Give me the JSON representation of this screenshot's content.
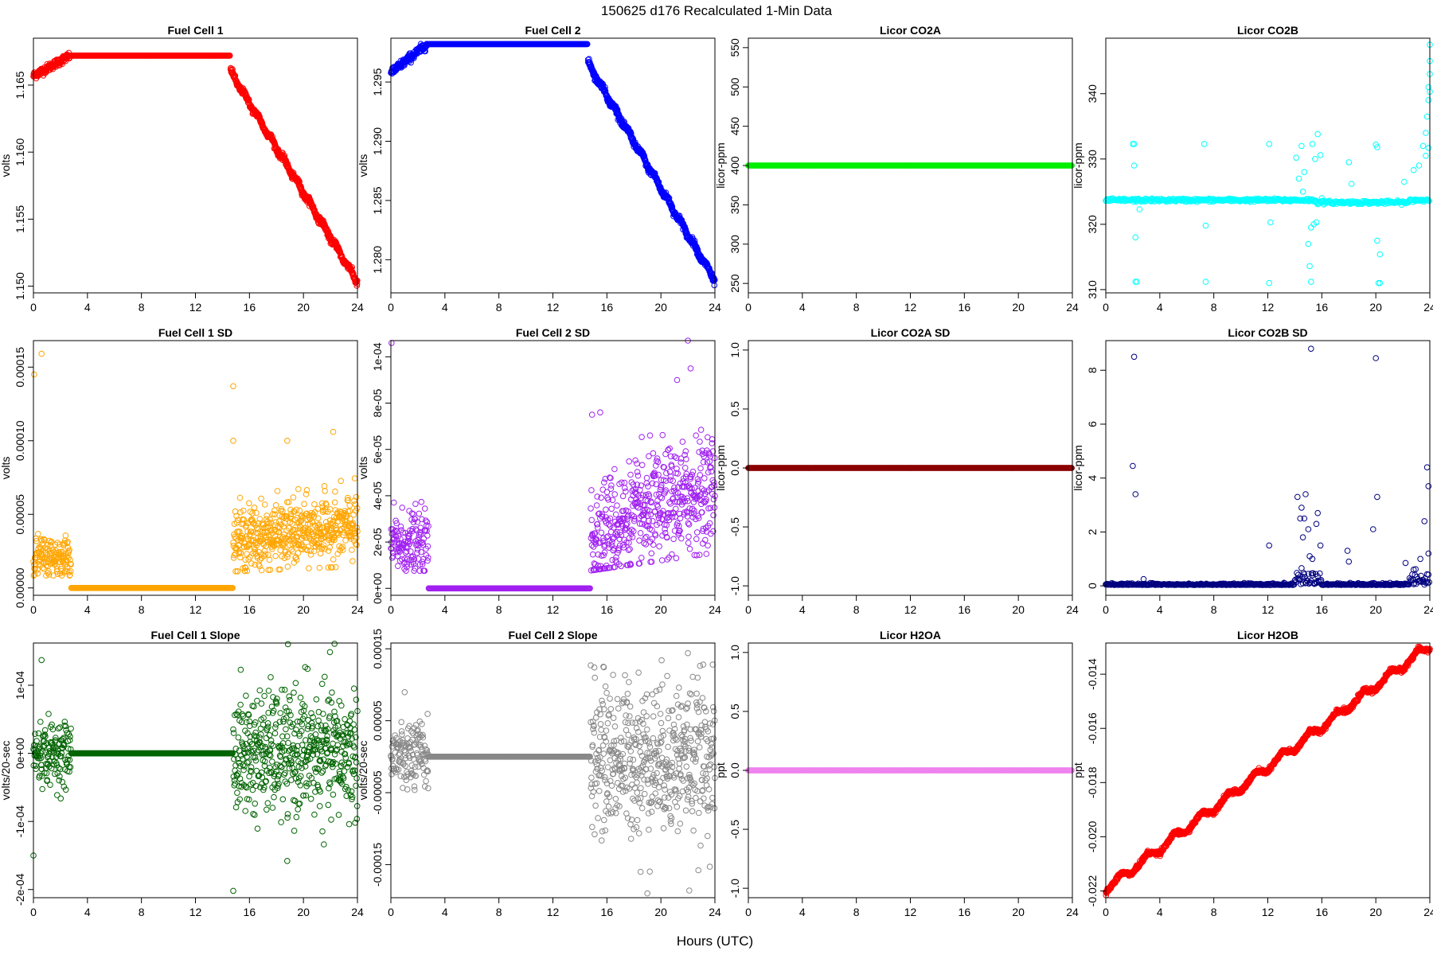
{
  "figure": {
    "title": "150625   d176   Recalculated 1-Min Data",
    "xlabel": "Hours (UTC)"
  },
  "chart_data": [
    {
      "type": "scatter",
      "title": "Fuel Cell 1",
      "ylabel": "volts",
      "color": "#ff0000",
      "xlim": [
        0,
        24
      ],
      "ylim": [
        1.1495,
        1.1685
      ],
      "xticks": [
        0,
        4,
        8,
        12,
        16,
        20,
        24
      ],
      "xtick_labels": [
        "0",
        "4",
        "8",
        "12",
        "16",
        "20",
        "24"
      ],
      "yticks": [
        1.15,
        1.155,
        1.16,
        1.165
      ],
      "ytick_labels": [
        "1.150",
        "1.155",
        "1.160",
        "1.165"
      ],
      "profile": "fc",
      "params": {
        "start": 1.1657,
        "plateau": 1.1672,
        "drop_start": 1.166,
        "end": 1.1503,
        "jitter": 0.00025
      }
    },
    {
      "type": "scatter",
      "title": "Fuel Cell 2",
      "ylabel": "volts",
      "color": "#0000ff",
      "xlim": [
        0,
        24
      ],
      "ylim": [
        1.2772,
        1.2987
      ],
      "xticks": [
        0,
        4,
        8,
        12,
        16,
        20,
        24
      ],
      "xtick_labels": [
        "0",
        "4",
        "8",
        "12",
        "16",
        "20",
        "24"
      ],
      "yticks": [
        1.28,
        1.285,
        1.29,
        1.295
      ],
      "ytick_labels": [
        "1.280",
        "1.285",
        "1.290",
        "1.295"
      ],
      "profile": "fc",
      "params": {
        "start": 1.2958,
        "plateau": 1.2982,
        "drop_start": 1.2966,
        "end": 1.2782,
        "jitter": 0.0003
      }
    },
    {
      "type": "scatter",
      "title": "Licor CO2A",
      "ylabel": "licor-ppm",
      "color": "#00ee00",
      "xlim": [
        0,
        24
      ],
      "ylim": [
        238,
        562
      ],
      "xticks": [
        0,
        4,
        8,
        12,
        16,
        20,
        24
      ],
      "xtick_labels": [
        "0",
        "4",
        "8",
        "12",
        "16",
        "20",
        "24"
      ],
      "yticks": [
        250,
        300,
        350,
        400,
        450,
        500,
        550
      ],
      "ytick_labels": [
        "250",
        "300",
        "350",
        "400",
        "450",
        "500",
        "550"
      ],
      "profile": "flat",
      "params": {
        "value": 400
      }
    },
    {
      "type": "scatter",
      "title": "Licor CO2B",
      "ylabel": "licor-ppm",
      "color": "#00ffff",
      "xlim": [
        0,
        24
      ],
      "ylim": [
        309.5,
        348.5
      ],
      "xticks": [
        0,
        4,
        8,
        12,
        16,
        20,
        24
      ],
      "xtick_labels": [
        "0",
        "4",
        "8",
        "12",
        "16",
        "20",
        "24"
      ],
      "yticks": [
        310,
        320,
        330,
        340
      ],
      "ytick_labels": [
        "310",
        "320",
        "330",
        "340"
      ],
      "profile": "co2b",
      "params": {
        "base": 323.7
      },
      "outliers": [
        [
          2.0,
          332.3
        ],
        [
          2.1,
          332.3
        ],
        [
          2.1,
          329
        ],
        [
          2.2,
          318
        ],
        [
          2.2,
          311.2
        ],
        [
          2.3,
          311.2
        ],
        [
          2.5,
          322.3
        ],
        [
          7.3,
          332.3
        ],
        [
          7.4,
          319.8
        ],
        [
          7.4,
          311.2
        ],
        [
          12.1,
          332.3
        ],
        [
          12.2,
          320.3
        ],
        [
          12.1,
          311
        ],
        [
          14.1,
          330.2
        ],
        [
          14.3,
          327
        ],
        [
          14.5,
          332
        ],
        [
          14.6,
          325
        ],
        [
          14.7,
          328
        ],
        [
          15.0,
          317
        ],
        [
          15.1,
          313.6
        ],
        [
          15.2,
          311.2
        ],
        [
          15.2,
          319.5
        ],
        [
          15.3,
          332.3
        ],
        [
          15.4,
          320
        ],
        [
          15.5,
          330
        ],
        [
          15.6,
          320.3
        ],
        [
          15.7,
          333.8
        ],
        [
          15.9,
          330.6
        ],
        [
          16.0,
          324
        ],
        [
          18.0,
          329.5
        ],
        [
          18.2,
          326.2
        ],
        [
          20.0,
          332.2
        ],
        [
          20.1,
          331.8
        ],
        [
          20.1,
          317.5
        ],
        [
          20.2,
          311
        ],
        [
          20.3,
          315.4
        ],
        [
          20.3,
          311
        ],
        [
          22.1,
          326.5
        ],
        [
          22.8,
          328.3
        ],
        [
          23.2,
          329
        ],
        [
          23.5,
          332
        ],
        [
          23.7,
          334
        ],
        [
          23.8,
          336.5
        ],
        [
          23.9,
          339
        ],
        [
          23.9,
          341
        ],
        [
          24.0,
          343
        ],
        [
          24.0,
          345
        ],
        [
          24.0,
          347.5
        ],
        [
          23.7,
          330.5
        ],
        [
          23.9,
          331.7
        ],
        [
          24.0,
          340.3
        ]
      ]
    },
    {
      "type": "scatter",
      "title": "Fuel Cell 1 SD",
      "ylabel": "volts",
      "color": "#ffa500",
      "xlim": [
        0,
        24
      ],
      "ylim": [
        -5e-06,
        0.000168
      ],
      "xticks": [
        0,
        4,
        8,
        12,
        16,
        20,
        24
      ],
      "xtick_labels": [
        "0",
        "4",
        "8",
        "12",
        "16",
        "20",
        "24"
      ],
      "yticks": [
        0,
        5e-05,
        0.0001,
        0.00015
      ],
      "ytick_labels": [
        "0.00000",
        "0.00005",
        "0.00010",
        "0.00015"
      ],
      "profile": "sd",
      "params": {
        "lo1": 2.1e-05,
        "sd1": 7e-06,
        "lo2": 3.2e-05,
        "sd2": 1.1e-05,
        "trend2": 1e-05
      },
      "outliers": [
        [
          0.05,
          0.000145
        ],
        [
          0.6,
          0.000159
        ],
        [
          14.8,
          0.000137
        ],
        [
          14.8,
          0.0001
        ],
        [
          22.2,
          0.000106
        ],
        [
          18.8,
          0.0001
        ]
      ]
    },
    {
      "type": "scatter",
      "title": "Fuel Cell 2 SD",
      "ylabel": "volts",
      "color": "#a020f0",
      "xlim": [
        0,
        24
      ],
      "ylim": [
        -3e-06,
        0.000107
      ],
      "xticks": [
        0,
        4,
        8,
        12,
        16,
        20,
        24
      ],
      "xtick_labels": [
        "0",
        "4",
        "8",
        "12",
        "16",
        "20",
        "24"
      ],
      "yticks": [
        0,
        2e-05,
        4e-05,
        6e-05,
        8e-05,
        0.0001
      ],
      "ytick_labels": [
        "0e+00",
        "2e-05",
        "4e-05",
        "6e-05",
        "8e-05",
        "1e-04"
      ],
      "profile": "sd",
      "params": {
        "lo1": 1.9e-05,
        "sd1": 7e-06,
        "lo2": 2.2e-05,
        "sd2": 1.2e-05,
        "trend2": 2.2e-05
      },
      "outliers": [
        [
          0.05,
          0.000106
        ],
        [
          22.0,
          0.000107
        ],
        [
          21.2,
          9e-05
        ],
        [
          22.2,
          9.5e-05
        ],
        [
          14.9,
          7.5e-05
        ],
        [
          15.5,
          7.6e-05
        ]
      ]
    },
    {
      "type": "scatter",
      "title": "Licor CO2A SD",
      "ylabel": "licor-ppm",
      "color": "#8b0000",
      "xlim": [
        0,
        24
      ],
      "ylim": [
        -1.08,
        1.08
      ],
      "xticks": [
        0,
        4,
        8,
        12,
        16,
        20,
        24
      ],
      "xtick_labels": [
        "0",
        "4",
        "8",
        "12",
        "16",
        "20",
        "24"
      ],
      "yticks": [
        -1,
        -0.5,
        0,
        0.5,
        1
      ],
      "ytick_labels": [
        "-1.0",
        "-0.5",
        "0.0",
        "0.5",
        "1.0"
      ],
      "profile": "flat",
      "params": {
        "value": 0
      }
    },
    {
      "type": "scatter",
      "title": "Licor CO2B SD",
      "ylabel": "licor-ppm",
      "color": "#000080",
      "xlim": [
        0,
        24
      ],
      "ylim": [
        -0.35,
        9.1
      ],
      "xticks": [
        0,
        4,
        8,
        12,
        16,
        20,
        24
      ],
      "xtick_labels": [
        "0",
        "4",
        "8",
        "12",
        "16",
        "20",
        "24"
      ],
      "yticks": [
        0,
        2,
        4,
        6,
        8
      ],
      "ytick_labels": [
        "0",
        "2",
        "4",
        "6",
        "8"
      ],
      "profile": "co2bsd",
      "params": {
        "base": 0.03
      },
      "outliers": [
        [
          2.0,
          4.45
        ],
        [
          2.1,
          8.5
        ],
        [
          2.2,
          3.4
        ],
        [
          2.8,
          0.25
        ],
        [
          12.1,
          1.5
        ],
        [
          14.2,
          3.3
        ],
        [
          14.4,
          2.5
        ],
        [
          14.5,
          2.9
        ],
        [
          14.6,
          1.8
        ],
        [
          14.7,
          2.5
        ],
        [
          14.8,
          3.4
        ],
        [
          15.0,
          2.1
        ],
        [
          15.1,
          1.1
        ],
        [
          15.2,
          8.8
        ],
        [
          15.3,
          1.0
        ],
        [
          15.6,
          2.3
        ],
        [
          15.7,
          2.7
        ],
        [
          15.9,
          1.5
        ],
        [
          17.9,
          1.3
        ],
        [
          18.0,
          0.9
        ],
        [
          20.0,
          8.45
        ],
        [
          19.8,
          2.1
        ],
        [
          20.1,
          3.3
        ],
        [
          22.2,
          0.85
        ],
        [
          22.8,
          0.6
        ],
        [
          23.3,
          1.0
        ],
        [
          23.6,
          2.4
        ],
        [
          23.8,
          4.4
        ],
        [
          23.9,
          3.7
        ],
        [
          23.9,
          1.2
        ]
      ]
    },
    {
      "type": "scatter",
      "title": "Fuel Cell 1 Slope",
      "ylabel": "volts/20-sec",
      "color": "#006400",
      "xlim": [
        0,
        24
      ],
      "ylim": [
        -0.000212,
        0.000162
      ],
      "xticks": [
        0,
        4,
        8,
        12,
        16,
        20,
        24
      ],
      "xtick_labels": [
        "0",
        "4",
        "8",
        "12",
        "16",
        "20",
        "24"
      ],
      "yticks": [
        -0.0002,
        -0.0001,
        0,
        0.0001
      ],
      "ytick_labels": [
        "-2e-04",
        "-1e-04",
        "0e+00",
        "1e-04"
      ],
      "profile": "slope",
      "params": {
        "sd1": 2.2e-05,
        "sd2": 4.5e-05
      },
      "outliers": [
        [
          0.0,
          -0.00015
        ],
        [
          0.6,
          0.000137
        ],
        [
          14.8,
          -0.000202
        ],
        [
          22.3,
          0.000161
        ],
        [
          20.3,
          0.000124
        ],
        [
          18.8,
          -0.000158
        ]
      ]
    },
    {
      "type": "scatter",
      "title": "Fuel Cell 2 Slope",
      "ylabel": "volts/20-sec",
      "color": "#888888",
      "xlim": [
        0,
        24
      ],
      "ylim": [
        -0.000196,
        0.000158
      ],
      "xticks": [
        0,
        4,
        8,
        12,
        16,
        20,
        24
      ],
      "xtick_labels": [
        "0",
        "4",
        "8",
        "12",
        "16",
        "20",
        "24"
      ],
      "yticks": [
        -0.00015,
        -5e-05,
        5e-05,
        0.00015
      ],
      "ytick_labels": [
        "-0.00015",
        "-0.00005",
        "0.00005",
        "0.00015"
      ],
      "profile": "slope",
      "params": {
        "sd1": 2.5e-05,
        "sd2": 5.2e-05
      },
      "outliers": [
        [
          14.8,
          0.000127
        ],
        [
          15.8,
          6.6e-05
        ],
        [
          22.0,
          0.000144
        ],
        [
          19.0,
          -0.00019
        ],
        [
          22.1,
          -0.000186
        ],
        [
          18.5,
          -0.00016
        ]
      ]
    },
    {
      "type": "scatter",
      "title": "Licor H2OA",
      "ylabel": "ppt",
      "color": "#ee82ee",
      "xlim": [
        0,
        24
      ],
      "ylim": [
        -1.08,
        1.08
      ],
      "xticks": [
        0,
        4,
        8,
        12,
        16,
        20,
        24
      ],
      "xtick_labels": [
        "0",
        "4",
        "8",
        "12",
        "16",
        "20",
        "24"
      ],
      "yticks": [
        -1,
        -0.5,
        0,
        0.5,
        1
      ],
      "ytick_labels": [
        "-1.0",
        "-0.5",
        "0.0",
        "0.5",
        "1.0"
      ],
      "profile": "flat",
      "params": {
        "value": 0
      }
    },
    {
      "type": "scatter",
      "title": "Licor H2OB",
      "ylabel": "ppt",
      "color": "#ff0000",
      "xlim": [
        0,
        24
      ],
      "ylim": [
        -0.02225,
        -0.01285
      ],
      "xticks": [
        0,
        4,
        8,
        12,
        16,
        20,
        24
      ],
      "xtick_labels": [
        "0",
        "4",
        "8",
        "12",
        "16",
        "20",
        "24"
      ],
      "yticks": [
        -0.022,
        -0.02,
        -0.018,
        -0.016,
        -0.014
      ],
      "ytick_labels": [
        "-0.022",
        "-0.020",
        "-0.018",
        "-0.016",
        "-0.014"
      ],
      "profile": "stair",
      "params": {
        "start": -0.0221,
        "end": -0.0131
      }
    }
  ]
}
